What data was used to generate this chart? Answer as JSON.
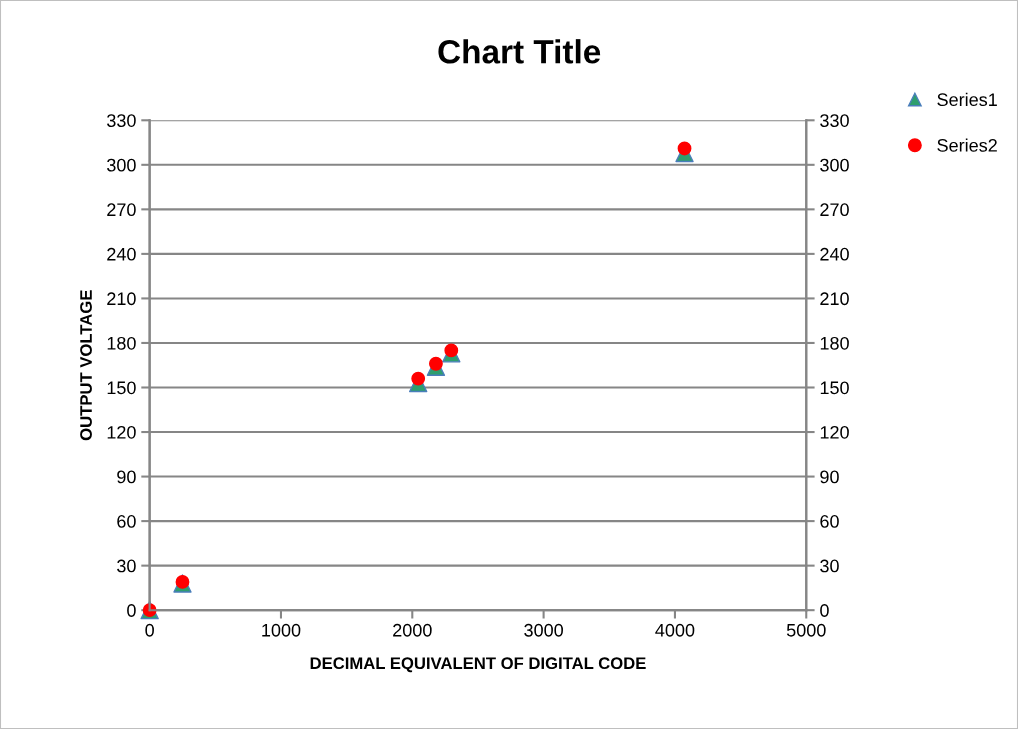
{
  "chart_data": {
    "type": "scatter",
    "title": "Chart Title",
    "xlabel": "DECIMAL EQUIVALENT OF DIGITAL CODE",
    "ylabel": "OUTPUT VOLTAGE",
    "x": [
      0,
      250,
      2045,
      2180,
      2297,
      4073
    ],
    "series": [
      {
        "name": "Series1",
        "color": "#2e9e6e",
        "marker": "triangle",
        "values": [
          0,
          18,
          153,
          164,
          173,
          308
        ]
      },
      {
        "name": "Series2",
        "color": "#ff0000",
        "marker": "circle",
        "values": [
          0,
          19,
          156,
          166,
          175,
          311
        ]
      }
    ],
    "xlim": [
      0,
      5000
    ],
    "xticks": [
      0,
      1000,
      2000,
      3000,
      4000,
      5000
    ],
    "ylim": [
      0,
      330
    ],
    "yticks": [
      0,
      30,
      60,
      90,
      120,
      150,
      180,
      210,
      240,
      270,
      300,
      330
    ],
    "y2lim": [
      0,
      330
    ],
    "y2ticks": [
      0,
      30,
      60,
      90,
      120,
      150,
      180,
      210,
      240,
      270,
      300,
      330
    ],
    "grid": "y",
    "legend": "top right"
  }
}
